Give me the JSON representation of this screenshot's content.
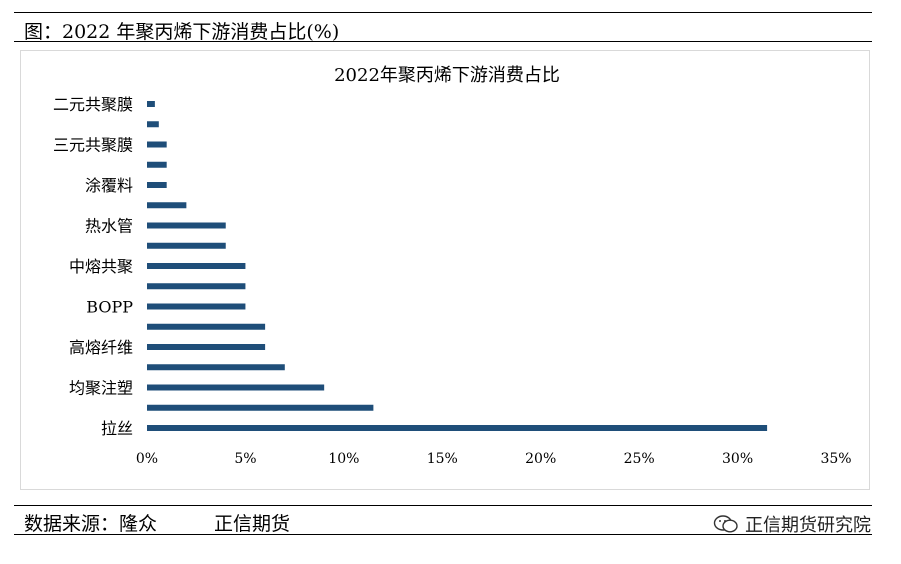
{
  "figure_caption": "图：2022 年聚丙烯下游消费占比(%)",
  "source_label": "数据来源：隆众",
  "source_org": "正信期货",
  "watermark_text": "正信期货研究院",
  "colors": {
    "bar": "#1F4E79",
    "frame": "#d9d9d9",
    "text": "#000000"
  },
  "chart_data": {
    "type": "bar",
    "orientation": "horizontal",
    "title": "2022年聚丙烯下游消费占比",
    "categories": [
      "二元共聚膜",
      "",
      "三元共聚膜",
      "",
      "涂覆料",
      "",
      "热水管",
      "",
      "中熔共聚",
      "",
      "BOPP",
      "",
      "高熔纤维",
      "",
      "均聚注塑",
      "",
      "拉丝"
    ],
    "values": [
      0.4,
      0.6,
      1.0,
      1.0,
      1.0,
      2.0,
      4.0,
      4.0,
      5.0,
      5.0,
      5.0,
      6.0,
      6.0,
      7.0,
      9.0,
      11.5,
      31.5
    ],
    "xlim": [
      0,
      35
    ],
    "xticks": [
      "0%",
      "5%",
      "10%",
      "15%",
      "20%",
      "25%",
      "30%",
      "35%"
    ],
    "xtick_values": [
      0,
      5,
      10,
      15,
      20,
      25,
      30,
      35
    ],
    "xlabel": "",
    "ylabel": "",
    "grid": false,
    "legend": "none"
  }
}
